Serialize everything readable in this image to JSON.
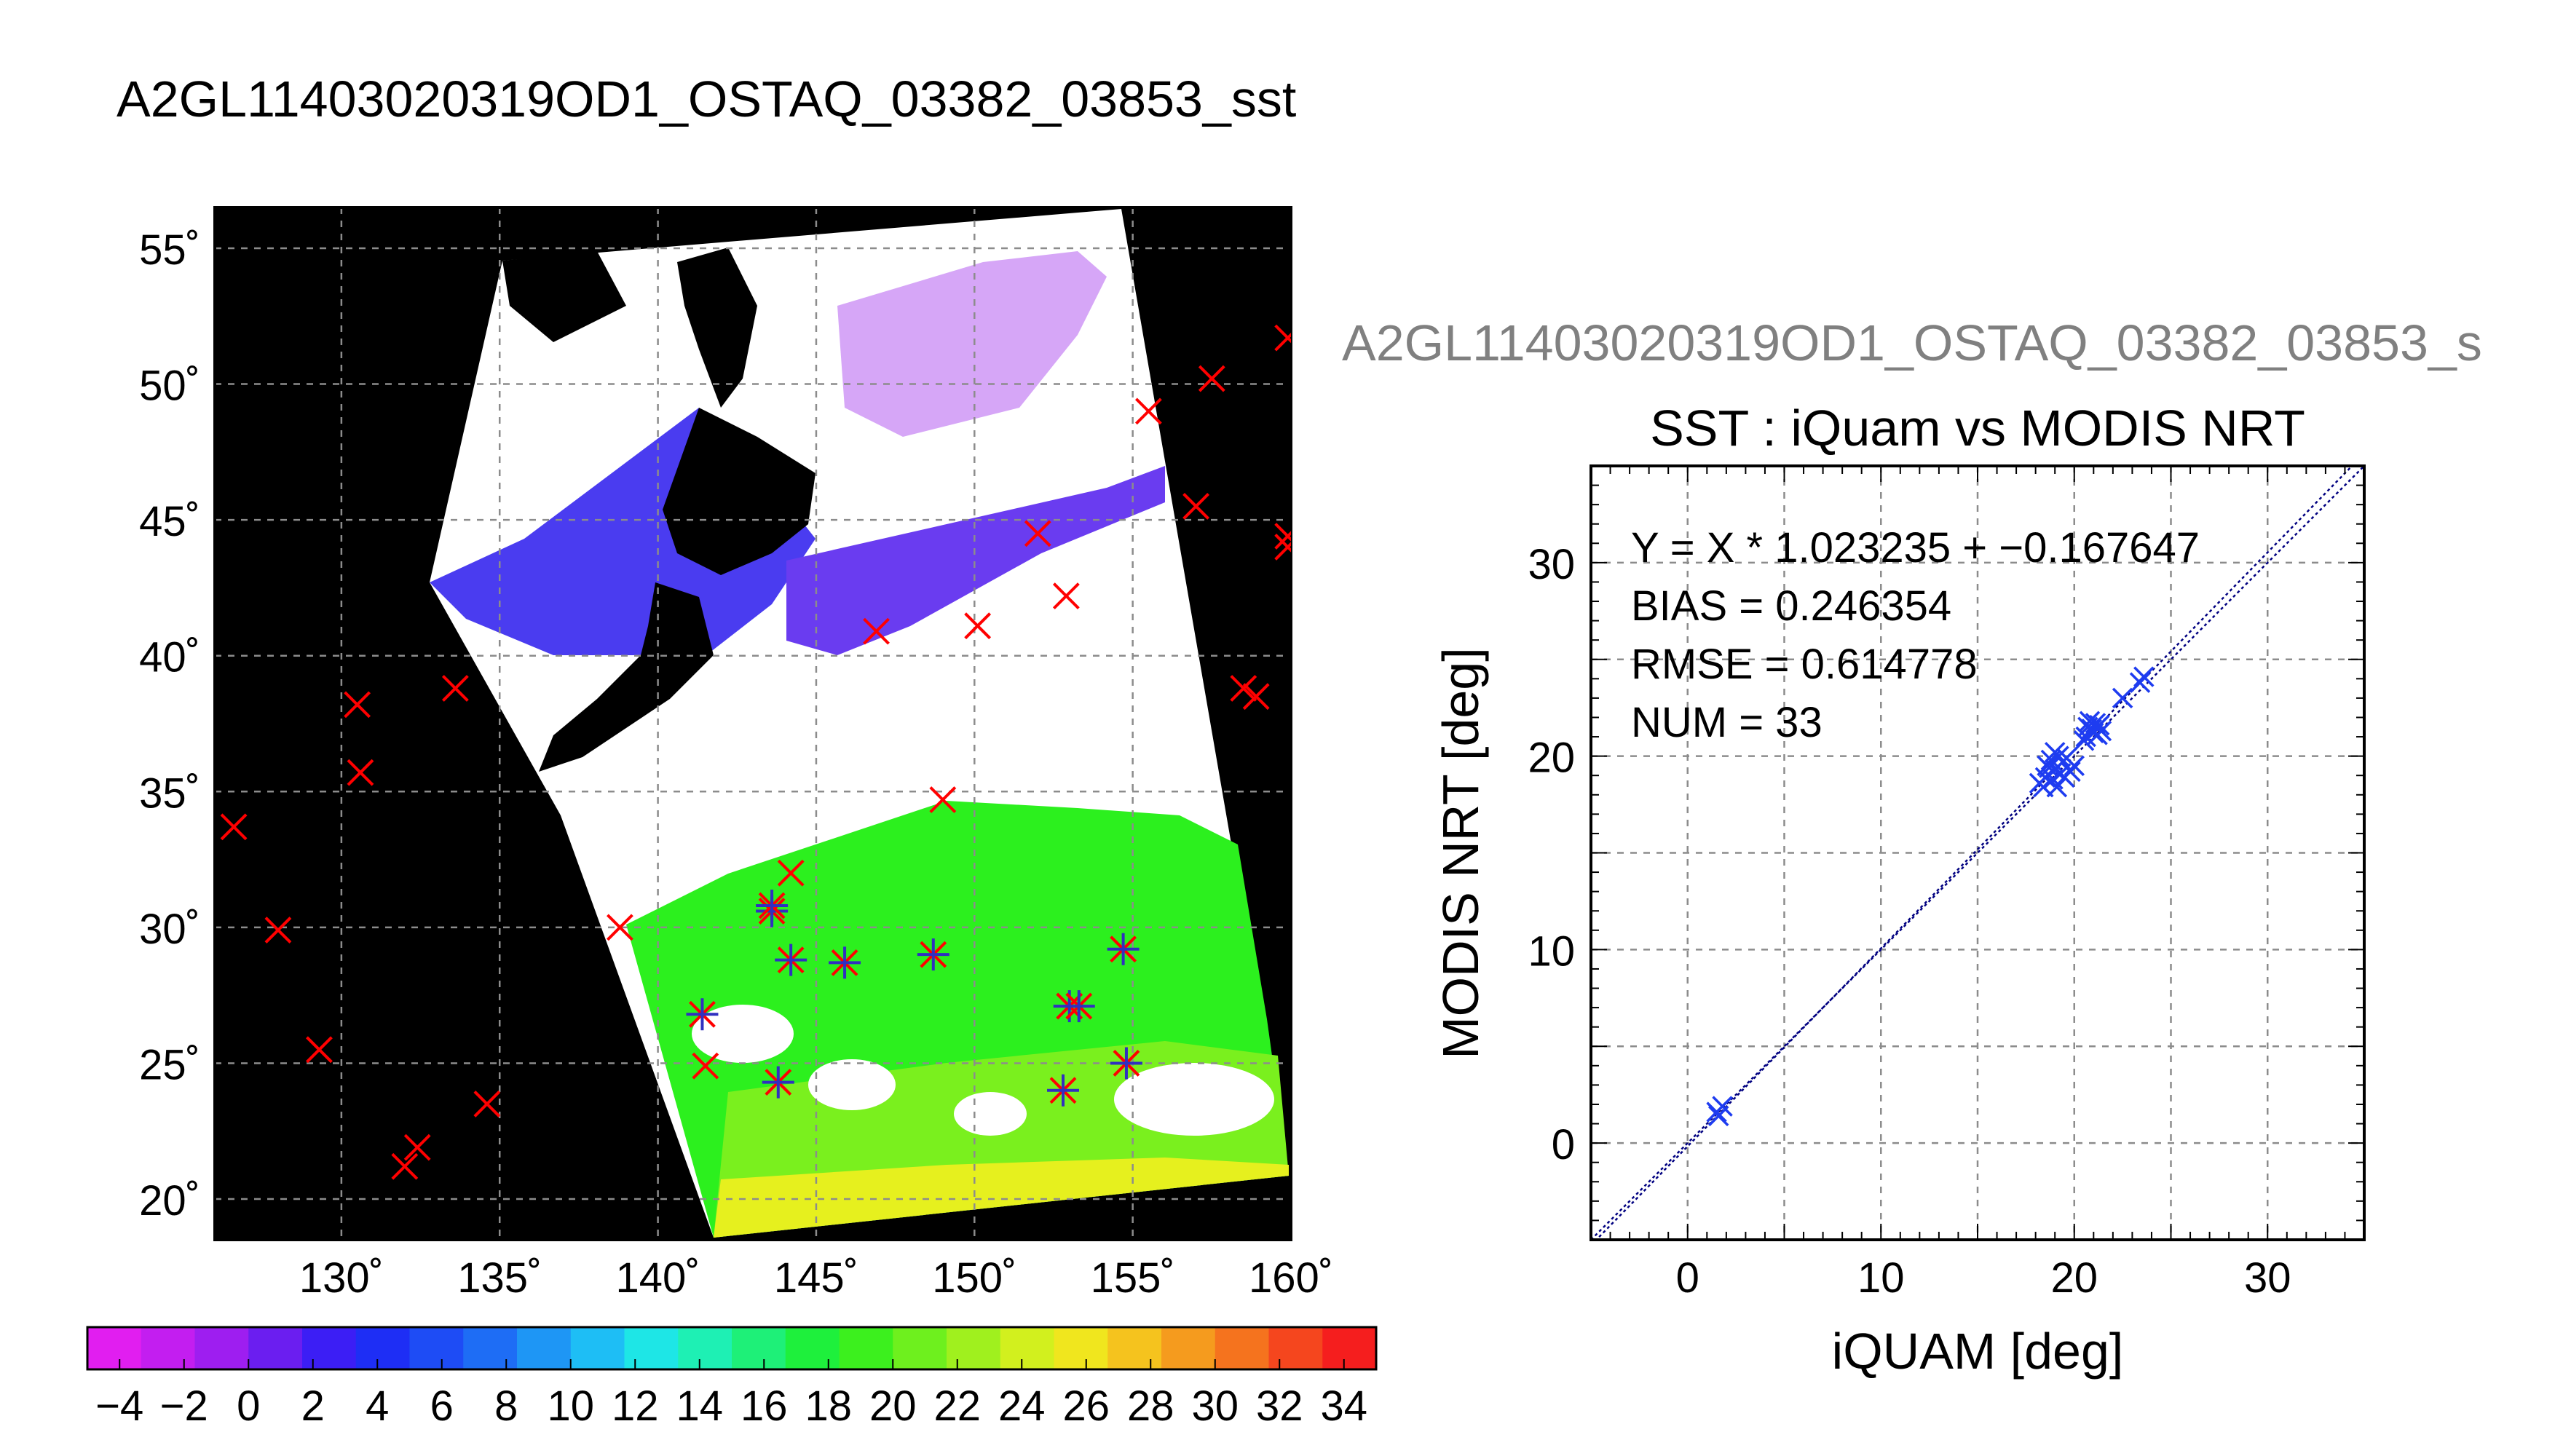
{
  "figure_title": "A2GL11403020319OD1_OSTAQ_03382_03853_sst",
  "scatter_header": "A2GL11403020319OD1_OSTAQ_03382_03853_s",
  "map": {
    "lat_labels": [
      "55˚",
      "50˚",
      "45˚",
      "40˚",
      "35˚",
      "30˚",
      "25˚",
      "20˚"
    ],
    "lon_labels": [
      "130˚",
      "135˚",
      "140˚",
      "145˚",
      "150˚",
      "155˚",
      "160˚"
    ],
    "lat_values": [
      55,
      50,
      45,
      40,
      35,
      30,
      25,
      20
    ],
    "lon_values": [
      130,
      135,
      140,
      145,
      150,
      155,
      160
    ],
    "lon_range": [
      126,
      160
    ],
    "lat_range": [
      18.5,
      56.5
    ],
    "land_color": "#000000",
    "cloud_color": "#ffffff",
    "buoy_marker_color": "#ff0000",
    "matched_marker_color": "#3030c0",
    "buoys": [
      [
        126.6,
        33.7
      ],
      [
        128.0,
        29.9
      ],
      [
        129.3,
        25.5
      ],
      [
        130.5,
        38.2
      ],
      [
        130.6,
        35.7
      ],
      [
        132.0,
        21.2
      ],
      [
        132.4,
        21.9
      ],
      [
        133.6,
        38.8
      ],
      [
        134.6,
        23.5
      ],
      [
        138.8,
        30.0
      ],
      [
        141.5,
        24.9
      ],
      [
        146.9,
        40.9
      ],
      [
        149.0,
        34.7
      ],
      [
        150.1,
        41.1
      ],
      [
        152.0,
        44.5
      ],
      [
        152.9,
        42.2
      ],
      [
        155.5,
        49.0
      ],
      [
        157.0,
        45.5
      ],
      [
        157.5,
        50.2
      ],
      [
        158.5,
        38.8
      ],
      [
        158.9,
        38.5
      ],
      [
        159.9,
        51.7
      ],
      [
        159.9,
        44.4
      ],
      [
        159.9,
        44.0
      ],
      [
        144.2,
        32.0
      ]
    ],
    "matched": [
      [
        141.4,
        26.8
      ],
      [
        143.6,
        30.6
      ],
      [
        143.6,
        30.8
      ],
      [
        144.2,
        28.8
      ],
      [
        143.8,
        24.3
      ],
      [
        145.9,
        28.7
      ],
      [
        148.7,
        29.0
      ],
      [
        153.0,
        27.1
      ],
      [
        153.3,
        27.1
      ],
      [
        154.7,
        29.2
      ],
      [
        154.8,
        25.0
      ],
      [
        152.8,
        24.0
      ]
    ]
  },
  "colorbar": {
    "labels": [
      "−4",
      "−2",
      "0",
      "2",
      "4",
      "6",
      "8",
      "10",
      "12",
      "14",
      "16",
      "18",
      "20",
      "22",
      "24",
      "26",
      "28",
      "30",
      "32",
      "34"
    ],
    "min": -5,
    "max": 35,
    "step": 2,
    "colors": [
      "#e11ef0",
      "#c31ef0",
      "#9e1ef0",
      "#6b1ef0",
      "#3c1ef5",
      "#1e2ef5",
      "#1e4cf5",
      "#1e6df5",
      "#1e96f5",
      "#1ebef5",
      "#1ee6e6",
      "#1ef0b4",
      "#1ef078",
      "#1ef03c",
      "#3cf01e",
      "#6ef01e",
      "#a0f01e",
      "#d2f01e",
      "#f0e61e",
      "#f5c31e",
      "#f59b1e",
      "#f5731e",
      "#f5461e",
      "#f51e1e"
    ]
  },
  "chart_data": {
    "type": "scatter",
    "title": "SST : iQuam vs MODIS NRT",
    "xlabel": "iQUAM [deg]",
    "ylabel": "MODIS NRT [deg]",
    "xlim": [
      -5,
      35
    ],
    "ylim": [
      -5,
      35
    ],
    "xticks": [
      0,
      10,
      20,
      30
    ],
    "yticks": [
      0,
      10,
      20,
      30
    ],
    "grid": true,
    "marker_color": "#1e3cf0",
    "line_color": "#000080",
    "stats": [
      "Y = X * 1.023235 + −0.167647",
      "BIAS = 0.246354",
      "RMSE = 0.614778",
      "NUM = 33"
    ],
    "fit": {
      "slope": 1.023235,
      "intercept": -0.167647
    },
    "points": [
      [
        1.5,
        1.6
      ],
      [
        1.8,
        1.9
      ],
      [
        1.6,
        1.4
      ],
      [
        18.2,
        18.6
      ],
      [
        18.5,
        18.9
      ],
      [
        18.6,
        19.5
      ],
      [
        18.8,
        19.8
      ],
      [
        19.0,
        19.3
      ],
      [
        19.1,
        18.4
      ],
      [
        19.2,
        20.0
      ],
      [
        19.4,
        19.7
      ],
      [
        18.9,
        18.8
      ],
      [
        19.3,
        19.1
      ],
      [
        18.7,
        19.4
      ],
      [
        19.6,
        19.9
      ],
      [
        19.8,
        19.2
      ],
      [
        20.0,
        19.5
      ],
      [
        18.4,
        18.4
      ],
      [
        19.0,
        20.2
      ],
      [
        19.5,
        18.9
      ],
      [
        20.6,
        21.0
      ],
      [
        20.9,
        21.4
      ],
      [
        21.1,
        21.7
      ],
      [
        20.8,
        21.8
      ],
      [
        21.0,
        21.2
      ],
      [
        21.3,
        21.6
      ],
      [
        20.7,
        21.5
      ],
      [
        21.2,
        21.1
      ],
      [
        20.5,
        20.8
      ],
      [
        22.5,
        23.0
      ],
      [
        23.6,
        24.1
      ],
      [
        23.4,
        23.8
      ],
      [
        21.4,
        21.3
      ]
    ]
  }
}
